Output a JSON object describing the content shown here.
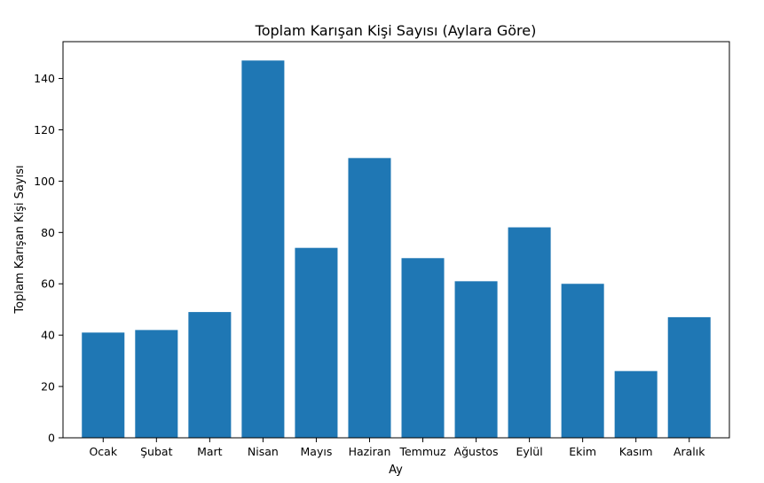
{
  "chart_data": {
    "type": "bar",
    "title": "Toplam Karışan Kişi Sayısı (Aylara Göre)",
    "xlabel": "Ay",
    "ylabel": "Toplam Karışan Kişi Sayısı",
    "categories": [
      "Ocak",
      "Şubat",
      "Mart",
      "Nisan",
      "Mayıs",
      "Haziran",
      "Temmuz",
      "Ağustos",
      "Eylül",
      "Ekim",
      "Kasım",
      "Aralık"
    ],
    "values": [
      41,
      42,
      49,
      147,
      74,
      109,
      70,
      61,
      82,
      60,
      26,
      47
    ],
    "ylim": [
      0,
      154.35
    ],
    "yticks": [
      0,
      20,
      40,
      60,
      80,
      100,
      120,
      140
    ],
    "grid": false,
    "bar_color": "#1f77b4"
  }
}
